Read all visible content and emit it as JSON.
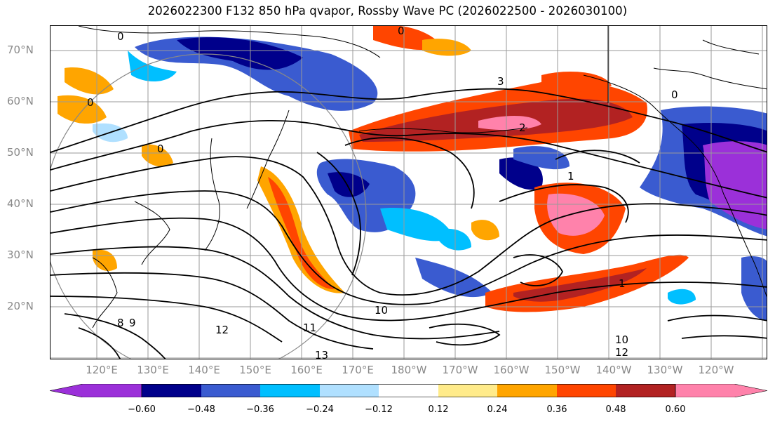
{
  "title": "2026022300 F132 850 hPa qvapor, Rossby Wave PC (2026022500 - 2026030100)",
  "lat_labels": [
    "70°N",
    "60°N",
    "50°N",
    "40°N",
    "30°N",
    "20°N"
  ],
  "lon_labels": [
    "120°E",
    "130°E",
    "140°E",
    "150°E",
    "160°E",
    "170°E",
    "180°W",
    "170°W",
    "160°W",
    "150°W",
    "140°W",
    "130°W",
    "120°W"
  ],
  "colorbar": {
    "colors": [
      "#9b30d9",
      "#00008b",
      "#3a5bd0",
      "#00bfff",
      "#b0e0ff",
      "#ffffff",
      "#ffeb8a",
      "#ffa500",
      "#ff4500",
      "#b22222",
      "#ff82ab"
    ],
    "ticks": [
      "−0.60",
      "−0.48",
      "−0.36",
      "−0.24",
      "−0.12",
      "0.12",
      "0.24",
      "0.36",
      "0.48",
      "0.60"
    ]
  },
  "contour_labels": [
    "0",
    "0",
    "0",
    "0",
    "0",
    "1",
    "1",
    "2",
    "3",
    "10",
    "11",
    "12",
    "13",
    "10",
    "12",
    "8",
    "9"
  ]
}
